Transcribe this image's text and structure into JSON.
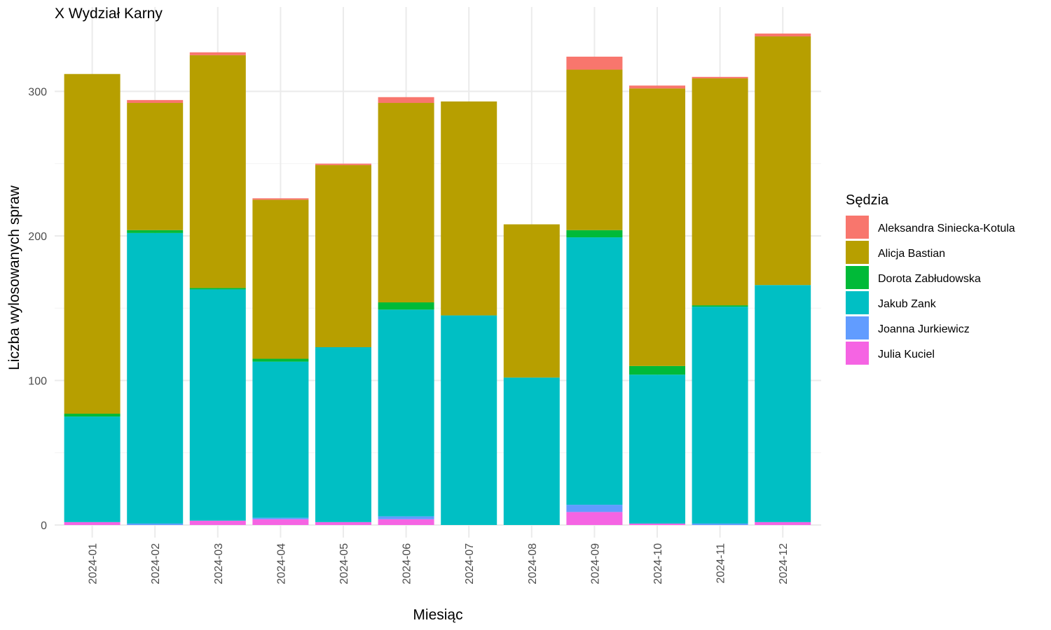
{
  "chart_data": {
    "type": "bar",
    "stacked": true,
    "title": "X Wydział Karny",
    "xlabel": "Miesiąc",
    "ylabel": "Liczba wylosowanych spraw",
    "ylim": [
      0,
      345
    ],
    "yticks": [
      0,
      100,
      200,
      300
    ],
    "grid": true,
    "legend_title": "Sędzia",
    "legend_position": "right",
    "categories": [
      "2024-01",
      "2024-02",
      "2024-03",
      "2024-04",
      "2024-05",
      "2024-06",
      "2024-07",
      "2024-08",
      "2024-09",
      "2024-10",
      "2024-11",
      "2024-12"
    ],
    "series": [
      {
        "name": "Aleksandra Siniecka-Kotula",
        "color": "#F8766D",
        "values": [
          0,
          2,
          2,
          1,
          1,
          4,
          0,
          0,
          9,
          2,
          1,
          2
        ]
      },
      {
        "name": "Alicja Bastian",
        "color": "#B79F00",
        "values": [
          235,
          88,
          161,
          110,
          126,
          138,
          148,
          106,
          111,
          192,
          157,
          172
        ]
      },
      {
        "name": "Dorota Zabłudowska",
        "color": "#00BA38",
        "values": [
          2,
          2,
          1,
          2,
          0,
          5,
          0,
          0,
          5,
          6,
          1,
          0
        ]
      },
      {
        "name": "Jakub Zank",
        "color": "#00BFC4",
        "values": [
          73,
          201,
          160,
          108,
          121,
          143,
          145,
          102,
          185,
          103,
          150,
          164
        ]
      },
      {
        "name": "Joanna Jurkiewicz",
        "color": "#619CFF",
        "values": [
          0,
          1,
          0,
          1,
          0,
          2,
          0,
          0,
          5,
          0,
          1,
          0
        ]
      },
      {
        "name": "Julia Kuciel",
        "color": "#F564E3",
        "values": [
          2,
          0,
          3,
          4,
          2,
          4,
          0,
          0,
          9,
          1,
          0,
          2
        ]
      }
    ]
  }
}
